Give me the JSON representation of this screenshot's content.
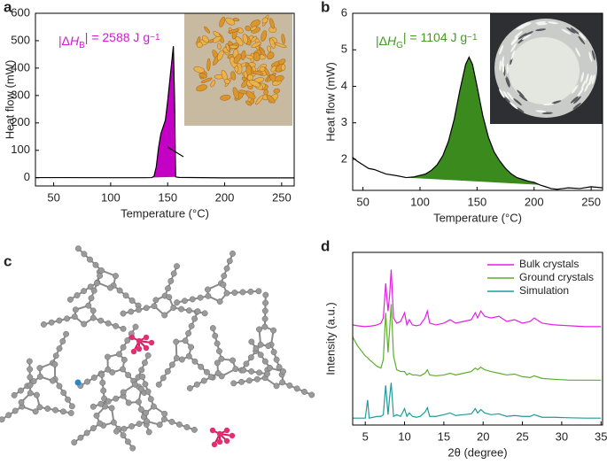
{
  "panel_c": {
    "label": "c"
  },
  "chart_data": [
    {
      "type": "line",
      "panel_label": "a",
      "xlabel": "Temperature (°C)",
      "ylabel": "Heat flow (mW)",
      "xlim": [
        34,
        261
      ],
      "ylim": [
        -30,
        600
      ],
      "xticks": [
        50,
        100,
        150,
        200,
        250
      ],
      "yticks": [
        0,
        100,
        200,
        300,
        400,
        500,
        600
      ],
      "annotation": {
        "parts": [
          "|Δ",
          "H",
          "B",
          "| = 2588 J g",
          "−1"
        ],
        "color": "#d21ad2"
      },
      "fill_from": 136,
      "fill_to": 157,
      "series": [
        {
          "line_color": "#000000",
          "fill_color": "#c400c4",
          "x": [
            34,
            60,
            100,
            130,
            136,
            138,
            140,
            142,
            144,
            146,
            148,
            150,
            152,
            154,
            155,
            156,
            157,
            160,
            200,
            261
          ],
          "values": [
            0.5,
            0.5,
            0,
            0,
            0.5,
            5,
            40,
            110,
            160,
            185,
            210,
            280,
            360,
            440,
            480,
            300,
            3,
            1,
            -0.5,
            -0.5
          ]
        }
      ]
    },
    {
      "type": "line",
      "panel_label": "b",
      "xlabel": "Temperature (°C)",
      "ylabel": "Heat flow (mW)",
      "xlim": [
        41,
        260
      ],
      "ylim": [
        1.15,
        6
      ],
      "xticks": [
        50,
        100,
        150,
        200,
        250
      ],
      "yticks": [
        2,
        3,
        4,
        5,
        6
      ],
      "annotation": {
        "parts": [
          "|Δ",
          "H",
          "G",
          "| = 1104 J g",
          "−1"
        ],
        "color": "#3f9a22"
      },
      "fill_from": 88,
      "fill_to": 205,
      "series": [
        {
          "line_color": "#000000",
          "fill_color": "#3a8a1e",
          "x": [
            41,
            45,
            50,
            55,
            60,
            70,
            80,
            88,
            95,
            100,
            105,
            110,
            115,
            120,
            125,
            130,
            135,
            140,
            143,
            146,
            150,
            155,
            160,
            165,
            170,
            175,
            180,
            185,
            190,
            195,
            200,
            205,
            210,
            215,
            220,
            230,
            240,
            250,
            260
          ],
          "values": [
            2.05,
            1.95,
            1.85,
            1.75,
            1.72,
            1.6,
            1.55,
            1.5,
            1.52,
            1.56,
            1.6,
            1.7,
            1.85,
            2.1,
            2.5,
            3.1,
            3.9,
            4.6,
            4.8,
            4.6,
            4.0,
            3.2,
            2.6,
            2.2,
            1.95,
            1.75,
            1.6,
            1.5,
            1.45,
            1.4,
            1.37,
            1.3,
            1.25,
            1.2,
            1.18,
            1.22,
            1.2,
            1.25,
            1.22
          ]
        }
      ]
    },
    {
      "type": "line",
      "panel_label": "d",
      "xlabel": "2θ (degree)",
      "ylabel": "Intensity (a.u.)",
      "xlim": [
        3.4,
        35.2
      ],
      "ylim": [
        0,
        10
      ],
      "xticks": [
        5,
        10,
        15,
        20,
        25,
        30,
        35
      ],
      "legend": "upper right",
      "x": [
        3.4,
        4,
        5,
        5.3,
        5.5,
        6,
        6.5,
        7,
        7.3,
        7.6,
        7.9,
        8.1,
        8.3,
        8.6,
        9,
        9.5,
        10,
        10.3,
        10.6,
        11,
        11.5,
        12,
        12.6,
        12.9,
        13.2,
        14,
        15,
        15.8,
        16.5,
        17.5,
        18.5,
        19,
        19.3,
        19.7,
        20.2,
        21,
        22,
        23,
        24,
        25,
        26,
        26.5,
        27.5,
        29,
        31,
        33,
        35
      ],
      "series": [
        {
          "name": "Bulk crystals",
          "color": "#e41ee4",
          "values": [
            5.8,
            5.75,
            5.7,
            5.72,
            5.72,
            5.75,
            5.8,
            5.9,
            6.2,
            8.2,
            6.6,
            7.5,
            9.0,
            6.2,
            5.9,
            6.0,
            6.5,
            5.8,
            6.1,
            5.8,
            5.75,
            5.8,
            6.2,
            6.6,
            5.9,
            5.8,
            5.9,
            6.1,
            5.9,
            6.0,
            6.1,
            6.5,
            6.2,
            6.6,
            6.3,
            6.2,
            6.3,
            6.0,
            6.1,
            5.9,
            6.0,
            6.2,
            5.9,
            5.8,
            5.75,
            5.7,
            5.7
          ]
        },
        {
          "name": "Ground crystals",
          "color": "#5cae2e",
          "values": [
            5.1,
            4.6,
            4.0,
            3.9,
            3.8,
            3.6,
            3.4,
            3.3,
            3.8,
            6.5,
            4.2,
            5.5,
            7.0,
            4.0,
            3.2,
            3.1,
            3.1,
            2.9,
            3.0,
            2.9,
            2.9,
            2.85,
            3.0,
            3.2,
            2.9,
            2.85,
            2.9,
            3.0,
            2.9,
            3.0,
            3.1,
            3.3,
            3.2,
            3.35,
            3.2,
            3.1,
            3.0,
            2.9,
            2.95,
            2.8,
            2.75,
            2.85,
            2.7,
            2.65,
            2.6,
            2.6,
            2.6
          ]
        },
        {
          "name": "Simulation",
          "color": "#1f9b9b",
          "values": [
            0.4,
            0.4,
            0.4,
            1.45,
            0.4,
            0.45,
            0.5,
            0.5,
            0.6,
            2.3,
            0.6,
            1.6,
            2.45,
            0.5,
            0.6,
            0.5,
            0.95,
            0.5,
            0.7,
            0.5,
            0.45,
            0.5,
            0.75,
            1.0,
            0.5,
            0.5,
            0.6,
            0.7,
            0.55,
            0.6,
            0.65,
            0.95,
            0.7,
            0.9,
            0.7,
            0.6,
            0.65,
            0.5,
            0.55,
            0.5,
            0.5,
            0.6,
            0.45,
            0.45,
            0.42,
            0.4,
            0.4
          ]
        }
      ]
    }
  ]
}
